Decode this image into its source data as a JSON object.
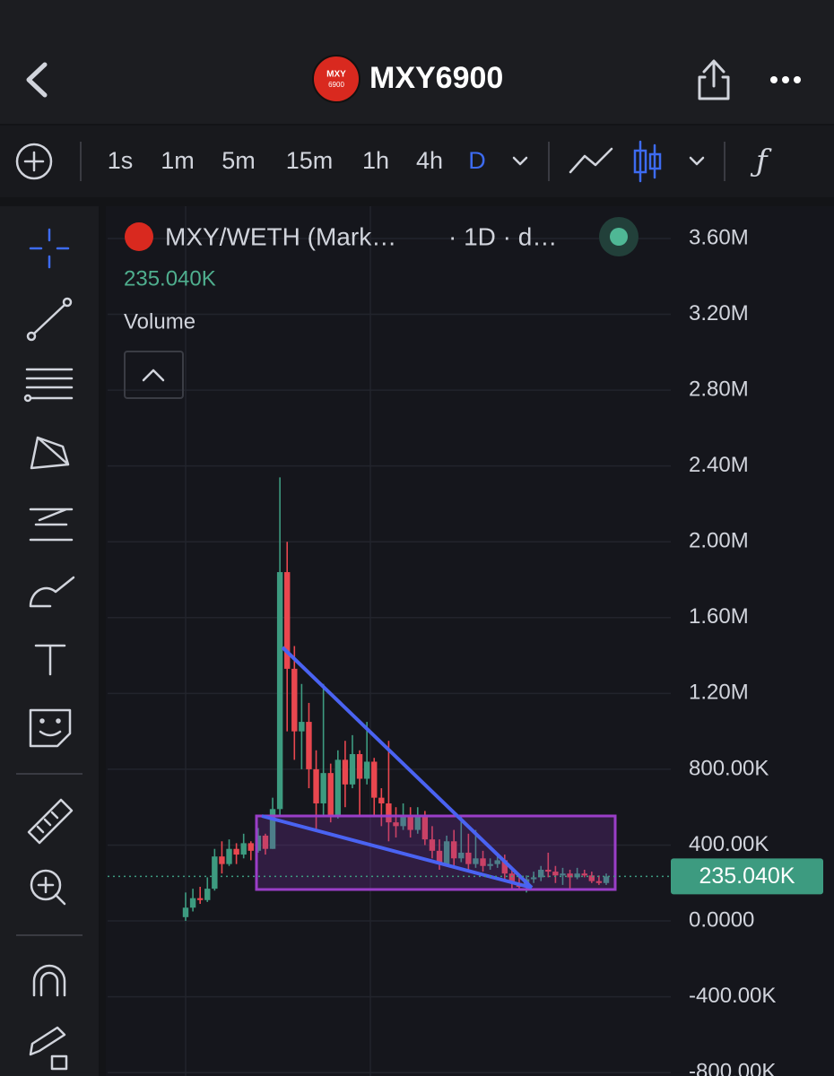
{
  "header": {
    "title": "MXY6900",
    "logo": [
      "MXY",
      "6900"
    ]
  },
  "toolbar": {
    "intervals": [
      "1s",
      "1m",
      "5m",
      "15m",
      "1h",
      "4h",
      "D"
    ],
    "active": 6
  },
  "legend": {
    "symbol": "MXY/WETH (Mark…",
    "interval": "· 1D · d…",
    "study": "Volume"
  },
  "chart_data": {
    "type": "candlestick",
    "grid": true,
    "up_color": "#3d9b80",
    "down_color": "#e9474f",
    "ylim": [
      -818000,
      3770000
    ],
    "yticks": [
      {
        "value": 3600000,
        "label": "3.60M"
      },
      {
        "value": 3200000,
        "label": "3.20M"
      },
      {
        "value": 2800000,
        "label": "2.80M"
      },
      {
        "value": 2400000,
        "label": "2.40M"
      },
      {
        "value": 2000000,
        "label": "2.00M"
      },
      {
        "value": 1600000,
        "label": "1.60M"
      },
      {
        "value": 1200000,
        "label": "1.20M"
      },
      {
        "value": 800000,
        "label": "800.00K"
      },
      {
        "value": 400000,
        "label": "400.00K"
      },
      {
        "value": 0,
        "label": "0.0000"
      },
      {
        "value": -400000,
        "label": "-400.00K"
      },
      {
        "value": -800000,
        "label": "-800.00K"
      }
    ],
    "last_price": {
      "value": 235040,
      "label": "235.040K"
    },
    "open": [
      20000,
      70000,
      120000,
      110000,
      170000,
      340000,
      300000,
      380000,
      350000,
      410000,
      370000,
      450000,
      380000,
      590000,
      1840000,
      1330000,
      1000000,
      1050000,
      800000,
      620000,
      780000,
      560000,
      850000,
      720000,
      880000,
      750000,
      840000,
      650000,
      620000,
      520000,
      500000,
      560000,
      480000,
      560000,
      430000,
      370000,
      300000,
      420000,
      330000,
      360000,
      300000,
      330000,
      290000,
      300000,
      320000,
      250000,
      200000,
      180000,
      220000,
      230000,
      270000,
      260000,
      240000,
      250000,
      230000,
      250000,
      240000,
      210000,
      200000
    ],
    "high": [
      150000,
      170000,
      180000,
      230000,
      380000,
      420000,
      430000,
      410000,
      460000,
      420000,
      490000,
      460000,
      650000,
      2340000,
      2000000,
      1450000,
      1250000,
      1150000,
      900000,
      1250000,
      830000,
      900000,
      950000,
      980000,
      900000,
      1050000,
      860000,
      700000,
      950000,
      600000,
      620000,
      600000,
      600000,
      580000,
      500000,
      430000,
      450000,
      480000,
      560000,
      460000,
      480000,
      370000,
      330000,
      340000,
      350000,
      280000,
      240000,
      240000,
      260000,
      290000,
      360000,
      290000,
      280000,
      270000,
      280000,
      270000,
      260000,
      240000,
      250000
    ],
    "low": [
      0,
      50000,
      90000,
      100000,
      160000,
      250000,
      290000,
      300000,
      330000,
      320000,
      360000,
      350000,
      380000,
      560000,
      1000000,
      850000,
      800000,
      700000,
      480000,
      560000,
      520000,
      540000,
      600000,
      700000,
      560000,
      720000,
      560000,
      500000,
      420000,
      440000,
      480000,
      440000,
      460000,
      400000,
      330000,
      270000,
      290000,
      290000,
      310000,
      270000,
      280000,
      260000,
      270000,
      280000,
      220000,
      170000,
      160000,
      150000,
      200000,
      210000,
      230000,
      200000,
      190000,
      170000,
      220000,
      230000,
      200000,
      190000,
      190000
    ],
    "close": [
      70000,
      120000,
      110000,
      170000,
      340000,
      300000,
      380000,
      350000,
      410000,
      370000,
      450000,
      380000,
      590000,
      1840000,
      1330000,
      1000000,
      1050000,
      800000,
      620000,
      780000,
      560000,
      850000,
      720000,
      880000,
      750000,
      840000,
      650000,
      620000,
      520000,
      500000,
      560000,
      480000,
      560000,
      430000,
      370000,
      300000,
      420000,
      330000,
      360000,
      300000,
      330000,
      290000,
      300000,
      320000,
      250000,
      200000,
      180000,
      220000,
      230000,
      270000,
      260000,
      240000,
      250000,
      230000,
      250000,
      240000,
      210000,
      200000,
      235040
    ]
  }
}
